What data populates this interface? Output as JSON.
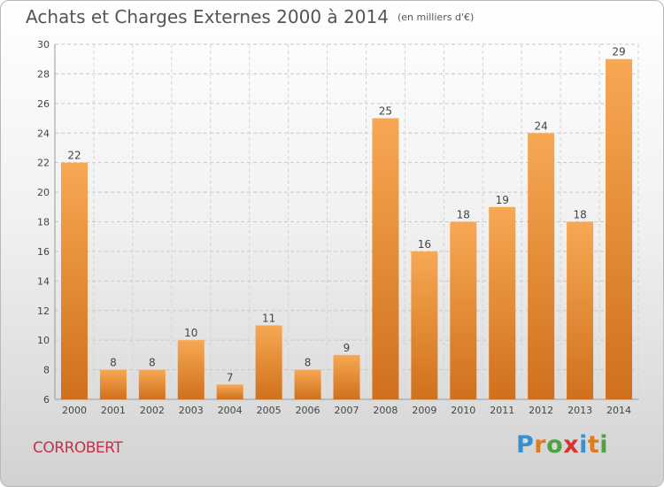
{
  "header": {
    "title": "Achats et Charges Externes 2000 à 2014",
    "unit": "(en milliers d'€)"
  },
  "footer": {
    "commune": "CORROBERT",
    "logo_text": "Proxiti"
  },
  "colors": {
    "bar_light": "#f7a853",
    "bar_dark": "#d0701c",
    "commune_text": "#c8304a",
    "logo_letters": [
      "#3a8fd0",
      "#e07a1a",
      "#4aa63c",
      "#d8342c",
      "#3a8fd0",
      "#e07a1a",
      "#4aa63c"
    ]
  },
  "chart_data": {
    "type": "bar",
    "title": "Achats et Charges Externes 2000 à 2014",
    "subtitle": "(en milliers d'€)",
    "categories": [
      "2000",
      "2001",
      "2002",
      "2003",
      "2004",
      "2005",
      "2006",
      "2007",
      "2008",
      "2009",
      "2010",
      "2011",
      "2012",
      "2013",
      "2014"
    ],
    "values": [
      22,
      8,
      8,
      10,
      7,
      11,
      8,
      9,
      25,
      16,
      18,
      19,
      24,
      18,
      29
    ],
    "ylim": [
      6,
      30
    ],
    "yticks": [
      6,
      8,
      10,
      12,
      14,
      16,
      18,
      20,
      22,
      24,
      26,
      28,
      30
    ],
    "grid": true,
    "data_labels": true
  }
}
